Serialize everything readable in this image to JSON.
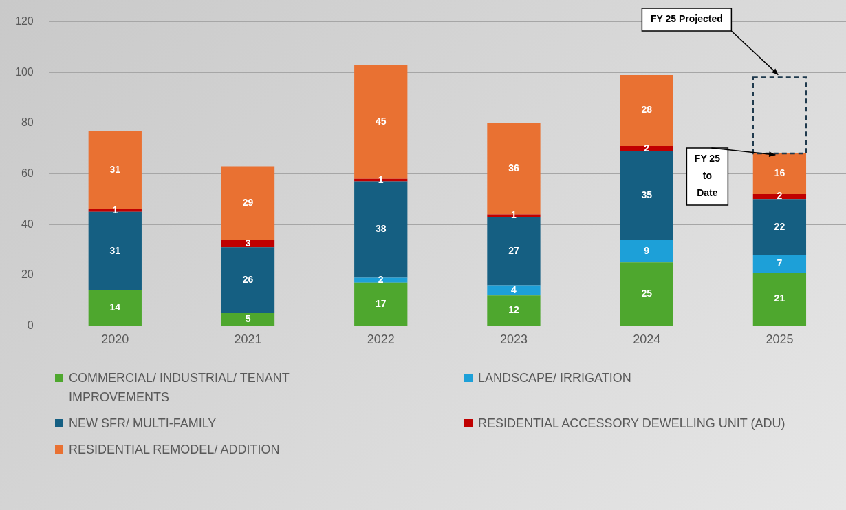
{
  "chart_data": {
    "type": "bar",
    "stacked": true,
    "categories": [
      "2020",
      "2021",
      "2022",
      "2023",
      "2024",
      "2025"
    ],
    "series": [
      {
        "name": "COMMERCIAL/ INDUSTRIAL/ TENANT IMPROVEMENTS",
        "color": "#4ea72e",
        "values": [
          14,
          5,
          17,
          12,
          25,
          21
        ],
        "value_labels": [
          "14",
          "5",
          "17",
          "12",
          "25",
          "21"
        ]
      },
      {
        "name": "LANDSCAPE/ IRRIGATION",
        "color": "#1da0d8",
        "values": [
          null,
          null,
          2,
          4,
          9,
          7
        ],
        "value_labels": [
          null,
          null,
          "2",
          "4",
          "9",
          "7"
        ]
      },
      {
        "name": "NEW SFR/ MULTI-FAMILY",
        "color": "#155f82",
        "values": [
          31,
          26,
          38,
          27,
          35,
          22
        ],
        "value_labels": [
          "31",
          "26",
          "38",
          "27",
          "35",
          "22"
        ]
      },
      {
        "name": "RESIDENTIAL ACCESSORY DEWELLING UNIT (ADU)",
        "color": "#c00000",
        "values": [
          1,
          3,
          1,
          1,
          2,
          2
        ],
        "value_labels": [
          "1",
          "3",
          "1",
          "1",
          "2",
          "2"
        ]
      },
      {
        "name": "RESIDENTIAL REMODEL/ ADDITION",
        "color": "#e97132",
        "values": [
          31,
          29,
          45,
          36,
          28,
          16
        ],
        "value_labels": [
          "31",
          "29",
          "45",
          "36",
          "28",
          "16"
        ]
      },
      {
        "color": "#1f3a4d",
        "line_style": "dashed",
        "values": [
          null,
          null,
          null,
          null,
          null,
          30
        ]
      }
    ],
    "ylim": [
      0,
      120
    ],
    "yticks": [
      0,
      20,
      40,
      60,
      80,
      100,
      120
    ],
    "grid": "y",
    "legend": "bottom",
    "annotations": [
      {
        "text": "FY 25 Projected",
        "x": "2025",
        "y": 98
      },
      {
        "text": "FY 25 to Date",
        "x": "2025",
        "y": 68
      }
    ]
  }
}
